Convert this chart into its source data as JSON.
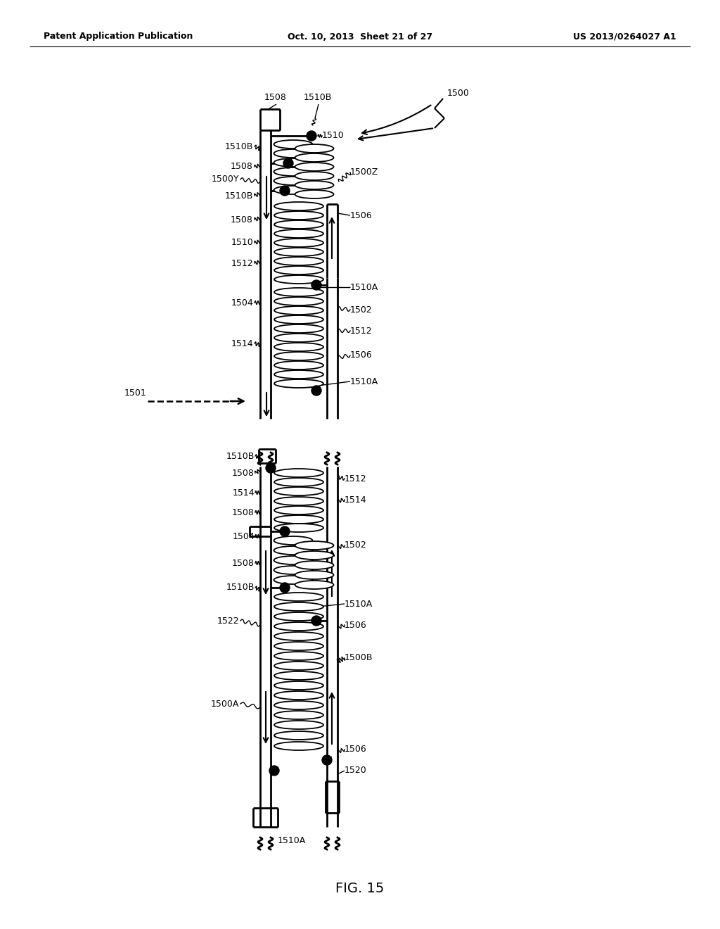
{
  "bg_color": "#ffffff",
  "header_left": "Patent Application Publication",
  "header_center": "Oct. 10, 2013  Sheet 21 of 27",
  "header_right": "US 2013/0264027 A1",
  "fig_label": "FIG. 15",
  "line_color": "#000000"
}
